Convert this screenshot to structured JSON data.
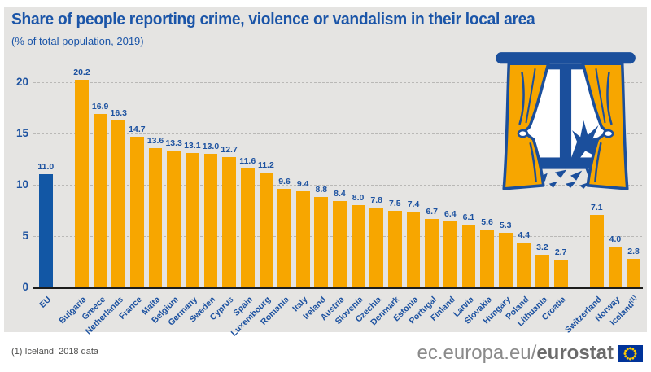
{
  "header": {
    "title": "Share of people reporting crime, violence or vandalism in their local area",
    "subtitle": "(% of total population, 2019)"
  },
  "chart_data": {
    "type": "bar",
    "title": "Share of people reporting crime, violence or vandalism in their local area",
    "subtitle": "(% of total population, 2019)",
    "ylabel": "% of total population",
    "ylim": [
      0,
      20
    ],
    "yticks": [
      0,
      5,
      10,
      15,
      20
    ],
    "grid": "dashed horizontal",
    "legend": "none",
    "series": [
      {
        "label": "EU",
        "value": "11.0",
        "group": "eu",
        "gap_after": true
      },
      {
        "label": "Bulgaria",
        "value": "20.2",
        "group": "country"
      },
      {
        "label": "Greece",
        "value": "16.9",
        "group": "country"
      },
      {
        "label": "Netherlands",
        "value": "16.3",
        "group": "country"
      },
      {
        "label": "France",
        "value": "14.7",
        "group": "country"
      },
      {
        "label": "Malta",
        "value": "13.6",
        "group": "country"
      },
      {
        "label": "Belgium",
        "value": "13.3",
        "group": "country"
      },
      {
        "label": "Germany",
        "value": "13.1",
        "group": "country"
      },
      {
        "label": "Sweden",
        "value": "13.0",
        "group": "country"
      },
      {
        "label": "Cyprus",
        "value": "12.7",
        "group": "country"
      },
      {
        "label": "Spain",
        "value": "11.6",
        "group": "country"
      },
      {
        "label": "Luxembourg",
        "value": "11.2",
        "group": "country"
      },
      {
        "label": "Romania",
        "value": "9.6",
        "group": "country"
      },
      {
        "label": "Italy",
        "value": "9.4",
        "group": "country"
      },
      {
        "label": "Ireland",
        "value": "8.8",
        "group": "country"
      },
      {
        "label": "Austria",
        "value": "8.4",
        "group": "country"
      },
      {
        "label": "Slovenia",
        "value": "8.0",
        "group": "country"
      },
      {
        "label": "Czechia",
        "value": "7.8",
        "group": "country"
      },
      {
        "label": "Denmark",
        "value": "7.5",
        "group": "country"
      },
      {
        "label": "Estonia",
        "value": "7.4",
        "group": "country"
      },
      {
        "label": "Portugal",
        "value": "6.7",
        "group": "country"
      },
      {
        "label": "Finland",
        "value": "6.4",
        "group": "country"
      },
      {
        "label": "Latvia",
        "value": "6.1",
        "group": "country"
      },
      {
        "label": "Slovakia",
        "value": "5.6",
        "group": "country"
      },
      {
        "label": "Hungary",
        "value": "5.3",
        "group": "country"
      },
      {
        "label": "Poland",
        "value": "4.4",
        "group": "country"
      },
      {
        "label": "Lithuania",
        "value": "3.2",
        "group": "country"
      },
      {
        "label": "Croatia",
        "value": "2.7",
        "group": "country",
        "gap_after": true
      },
      {
        "label": "Switzerland",
        "value": "7.1",
        "group": "country"
      },
      {
        "label": "Norway",
        "value": "4.0",
        "group": "country"
      },
      {
        "label": "Iceland",
        "value": "2.8",
        "group": "country",
        "sup": "(1)"
      }
    ]
  },
  "colors": {
    "background": "#e5e4e2",
    "title_blue": "#1b55a8",
    "bar_eu_blue": "#1257a5",
    "bar_orange": "#f7a600",
    "label_blue": "#1d52a0",
    "gridline": "#b9b8b6",
    "axis": "#1c1c1b",
    "illustration_blue": "#1b4f9c",
    "flag_blue": "#003399",
    "flag_stars": "#ffcc00"
  },
  "icons": {
    "window": "broken-window-with-curtains-illustration",
    "flag": "eu-flag-icon"
  },
  "footer": {
    "footnote": "(1) Iceland: 2018 data",
    "url_prefix": "ec.europa.eu/",
    "url_bold": "eurostat"
  }
}
